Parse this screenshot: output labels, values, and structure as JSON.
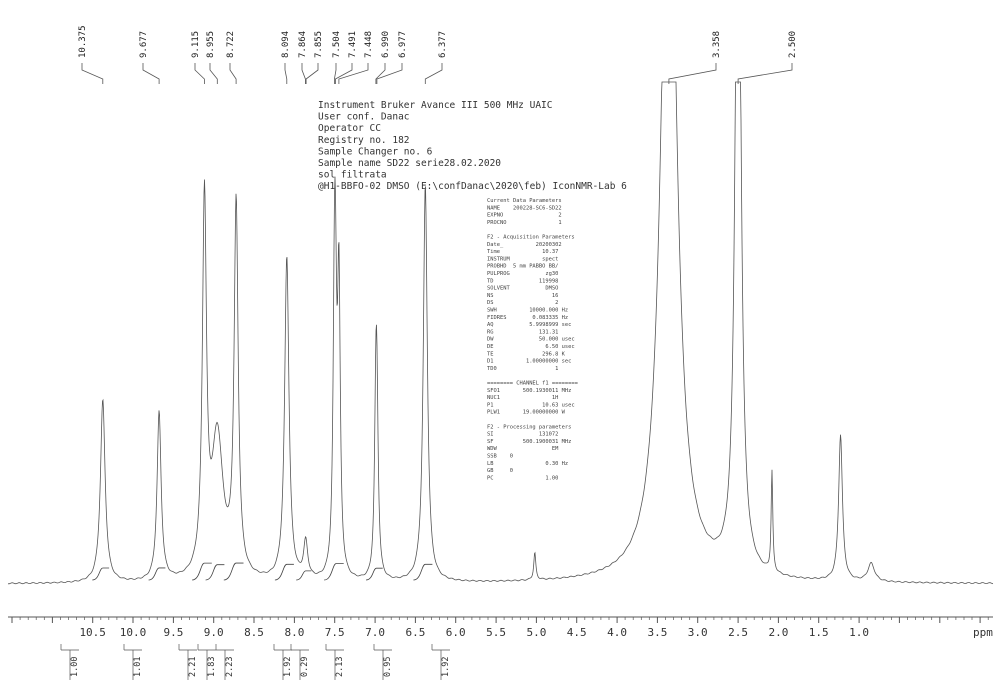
{
  "chart_data": {
    "type": "line",
    "title": "",
    "xlabel": "ppm",
    "ylabel": "",
    "xlim": [
      11.55,
      -0.66
    ],
    "x_reversed": true,
    "x_ticks": [
      10.5,
      10.0,
      9.5,
      9.0,
      8.5,
      8.0,
      7.5,
      7.0,
      6.5,
      6.0,
      5.5,
      5.0,
      4.5,
      4.0,
      3.5,
      3.0,
      2.5,
      2.0,
      1.5,
      1.0
    ],
    "x_tick_labels": [
      "10.5",
      "10.0",
      "9.5",
      "9.0",
      "8.5",
      "8.0",
      "7.5",
      "7.0",
      "6.5",
      "6.0",
      "5.5",
      "5.0",
      "4.5",
      "4.0",
      "3.5",
      "3.0",
      "2.5",
      "2.0",
      "1.5",
      "1.0"
    ],
    "peak_labels": [
      {
        "ppm": 10.375,
        "label": "10.375"
      },
      {
        "ppm": 9.677,
        "label": "9.677"
      },
      {
        "ppm": 9.115,
        "label": "9.115"
      },
      {
        "ppm": 8.955,
        "label": "8.955"
      },
      {
        "ppm": 8.722,
        "label": "8.722"
      },
      {
        "ppm": 8.094,
        "label": "8.094"
      },
      {
        "ppm": 7.864,
        "label": "7.864"
      },
      {
        "ppm": 7.855,
        "label": "7.855"
      },
      {
        "ppm": 7.504,
        "label": "7.504"
      },
      {
        "ppm": 7.491,
        "label": "7.491"
      },
      {
        "ppm": 7.448,
        "label": "7.448"
      },
      {
        "ppm": 6.99,
        "label": "6.990"
      },
      {
        "ppm": 6.977,
        "label": "6.977"
      },
      {
        "ppm": 6.377,
        "label": "6.377"
      },
      {
        "ppm": 3.358,
        "label": "3.358"
      },
      {
        "ppm": 2.5,
        "label": "2.500"
      }
    ],
    "spectrum_peaks": [
      {
        "ppm": 10.375,
        "height": 0.4,
        "width": 0.035
      },
      {
        "ppm": 9.677,
        "height": 0.37,
        "width": 0.03
      },
      {
        "ppm": 9.115,
        "height": 0.81,
        "width": 0.03
      },
      {
        "ppm": 8.955,
        "height": 0.31,
        "width": 0.085
      },
      {
        "ppm": 8.722,
        "height": 0.81,
        "width": 0.03
      },
      {
        "ppm": 8.094,
        "height": 0.71,
        "width": 0.032
      },
      {
        "ppm": 7.86,
        "height": 0.08,
        "width": 0.03
      },
      {
        "ppm": 7.504,
        "height": 0.46,
        "width": 0.02
      },
      {
        "ppm": 7.491,
        "height": 0.42,
        "width": 0.02
      },
      {
        "ppm": 7.448,
        "height": 0.62,
        "width": 0.02
      },
      {
        "ppm": 6.99,
        "height": 0.32,
        "width": 0.02
      },
      {
        "ppm": 6.977,
        "height": 0.3,
        "width": 0.02
      },
      {
        "ppm": 6.377,
        "height": 0.87,
        "width": 0.03
      },
      {
        "ppm": 5.02,
        "height": 0.06,
        "width": 0.015
      },
      {
        "ppm": 3.358,
        "height": 1.8,
        "width": 0.11
      },
      {
        "ppm": 2.5,
        "height": 1.8,
        "width": 0.04
      },
      {
        "ppm": 2.08,
        "height": 0.22,
        "width": 0.012
      },
      {
        "ppm": 1.23,
        "height": 0.32,
        "width": 0.028
      },
      {
        "ppm": 0.85,
        "height": 0.04,
        "width": 0.05
      }
    ],
    "integrals": [
      {
        "ppm": 10.375,
        "value": "1.00"
      },
      {
        "ppm": 9.677,
        "value": "1.01"
      },
      {
        "ppm": 9.115,
        "value": "2.21"
      },
      {
        "ppm": 8.955,
        "value": "1.83"
      },
      {
        "ppm": 8.722,
        "value": "2.23"
      },
      {
        "ppm": 8.094,
        "value": "1.92"
      },
      {
        "ppm": 7.86,
        "value": "0.29"
      },
      {
        "ppm": 7.48,
        "value": "2.13"
      },
      {
        "ppm": 6.983,
        "value": "0.95"
      },
      {
        "ppm": 6.377,
        "value": "1.92"
      }
    ]
  },
  "header_lines": [
    "Instrument Bruker Avance III 500 MHz UAIC",
    "User conf. Danac",
    "Operator CC",
    "Registry no. 182",
    "Sample Changer no. 6",
    "Sample name SD22 serie28.02.2020",
    "sol filtrata",
    "@H1-BBFO-02 DMSO (E:\\confDanac\\2020\\feb) IconNMR-Lab 6"
  ],
  "param_lines": [
    "Current Data Parameters",
    "NAME    200228-SC6-SD22",
    "EXPNO                 2",
    "PROCNO                1",
    "",
    "F2 - Acquisition Parameters",
    "Date_          20200302",
    "Time             10.37",
    "INSTRUM          spect",
    "PROBHD  5 mm PABBO BB/",
    "PULPROG           zg30",
    "TD              119998",
    "SOLVENT           DMSO",
    "NS                  16",
    "DS                   2",
    "SWH          10000.000 Hz",
    "FIDRES        0.083335 Hz",
    "AQ           5.9998999 sec",
    "RG              131.31",
    "DW              50.000 usec",
    "DE                6.50 usec",
    "TE               296.8 K",
    "D1          1.00000000 sec",
    "TD0                  1",
    "",
    "======== CHANNEL f1 ========",
    "SFO1       500.1930011 MHz",
    "NUC1                1H",
    "P1               10.63 usec",
    "PLW1       19.00000000 W",
    "",
    "F2 - Processing parameters",
    "SI              131072",
    "SF         500.1900031 MHz",
    "WDW                 EM",
    "SSB    0",
    "LB                0.30 Hz",
    "GB     0",
    "PC                1.00"
  ]
}
